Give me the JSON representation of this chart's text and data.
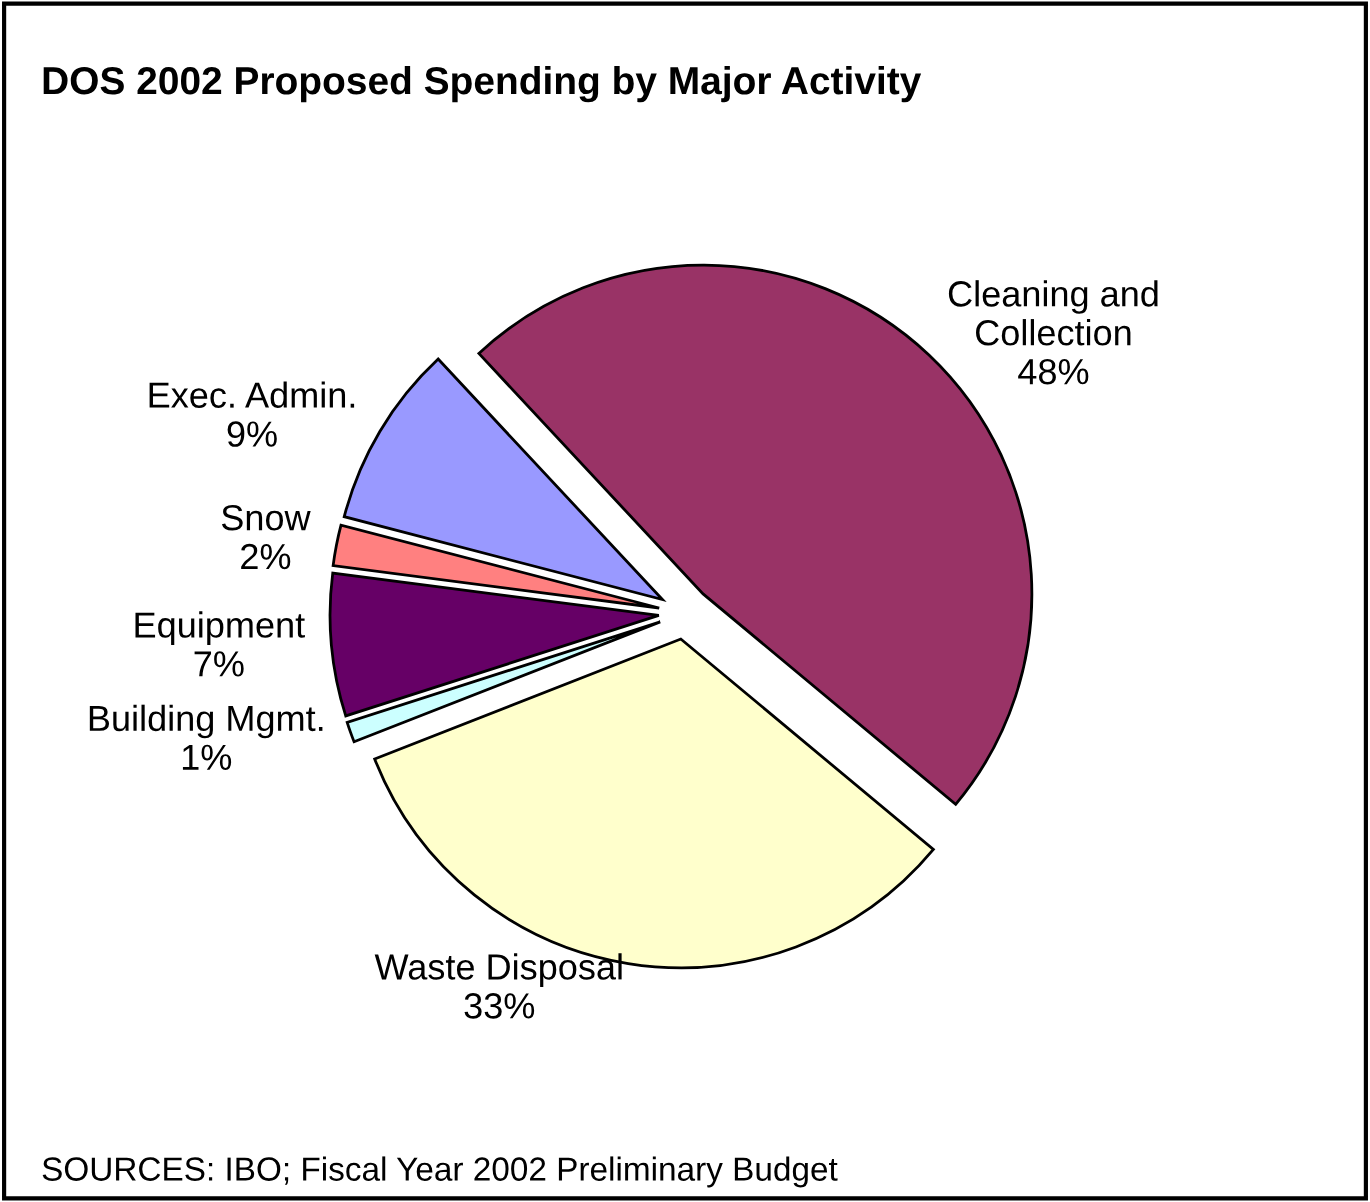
{
  "chart_data": {
    "type": "pie",
    "title": "DOS 2002 Proposed Spending by Major Activity",
    "categories": [
      "Cleaning and\nCollection",
      "Waste Disposal",
      "Building Mgmt.",
      "Equipment",
      "Snow",
      "Exec. Admin."
    ],
    "values": [
      48,
      33,
      1,
      7,
      2,
      9
    ],
    "value_labels": [
      "48%",
      "33%",
      "1%",
      "7%",
      "2%",
      "9%"
    ],
    "colors": [
      "#993366",
      "#ffffcc",
      "#ccffff",
      "#660066",
      "#ff8080",
      "#9999ff"
    ],
    "legend": false,
    "annotations": [
      "SOURCES: IBO; Fiscal Year 2002 Preliminary Budget"
    ]
  }
}
